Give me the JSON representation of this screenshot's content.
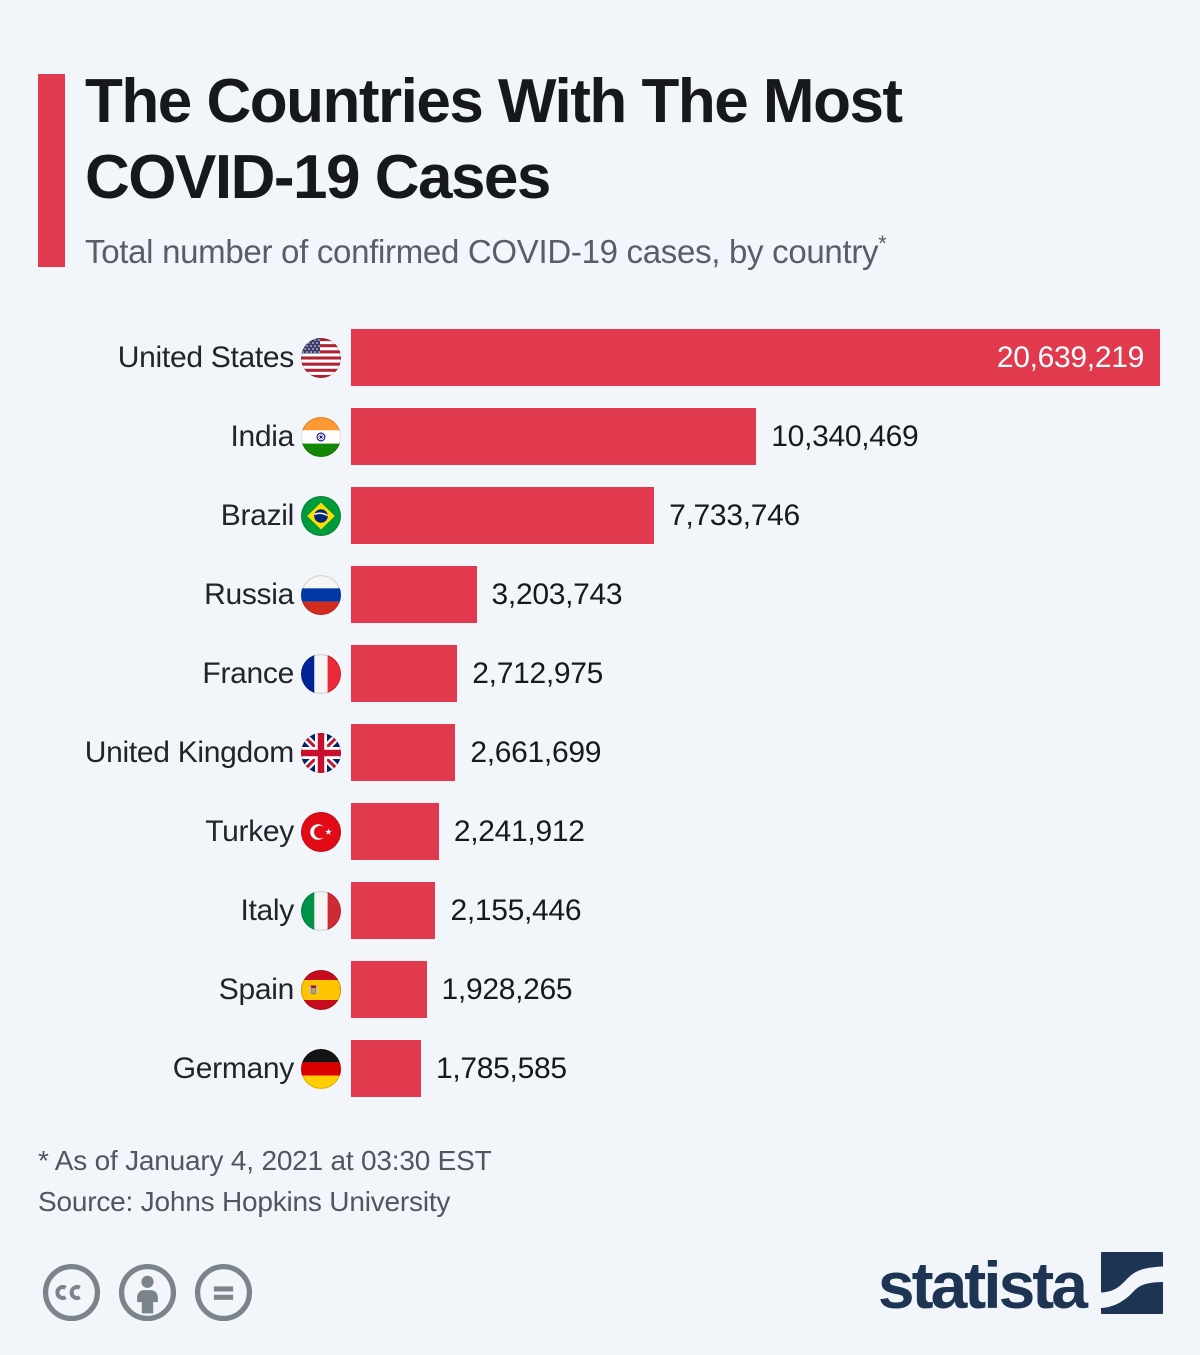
{
  "header": {
    "title_line1": "The Countries With The Most",
    "title_line2": "COVID-19 Cases",
    "subtitle": "Total number of confirmed COVID-19 cases, by country",
    "footnote_marker": "*"
  },
  "chart_data": {
    "type": "bar",
    "orientation": "horizontal",
    "title": "The Countries With The Most COVID-19 Cases",
    "subtitle": "Total number of confirmed COVID-19 cases, by country*",
    "categories": [
      "United States",
      "India",
      "Brazil",
      "Russia",
      "France",
      "United Kingdom",
      "Turkey",
      "Italy",
      "Spain",
      "Germany"
    ],
    "values": [
      20639219,
      10340469,
      7733746,
      3203743,
      2712975,
      2661699,
      2241912,
      2155446,
      1928265,
      1785585
    ],
    "value_labels": [
      "20,639,219",
      "10,340,469",
      "7,733,746",
      "3,203,743",
      "2,712,975",
      "2,661,699",
      "2,241,912",
      "2,155,446",
      "1,928,265",
      "1,785,585"
    ],
    "flags": [
      "us",
      "in",
      "br",
      "ru",
      "fr",
      "gb",
      "tr",
      "it",
      "es",
      "de"
    ],
    "value_inside_bar": [
      true,
      false,
      false,
      false,
      false,
      false,
      false,
      false,
      false,
      false
    ],
    "xlim": [
      0,
      20639219
    ],
    "grid": false,
    "legend": false,
    "bar_color": "#e13a4f"
  },
  "footer": {
    "note": "* As of January 4, 2021 at 03:30 EST",
    "source": "Source: Johns Hopkins University"
  },
  "branding": {
    "logo_text": "statista",
    "license_icons": [
      "cc",
      "attribution",
      "no-derivatives"
    ]
  },
  "colors": {
    "background": "#f2f6fa",
    "bar": "#e13a4f",
    "accent": "#e13a4f",
    "title": "#17181a",
    "subtitle": "#555e69",
    "country_label": "#21242a",
    "value_label": "#17191d",
    "value_label_inside": "#ffffff",
    "footer_text": "#4e565f",
    "license_gray": "#7c848b",
    "brand_navy": "#1d3452"
  }
}
